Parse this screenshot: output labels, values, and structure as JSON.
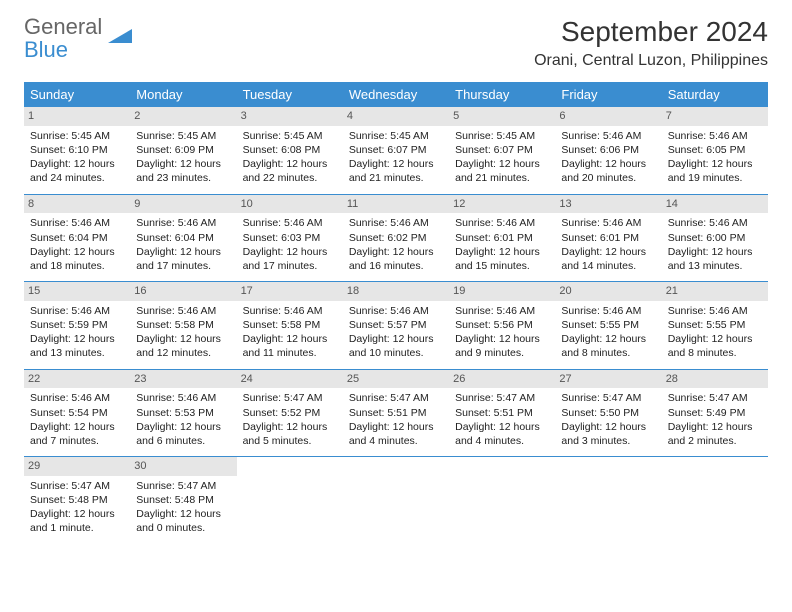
{
  "logo": {
    "gray": "General",
    "blue": "Blue"
  },
  "title": "September 2024",
  "location": "Orani, Central Luzon, Philippines",
  "colors": {
    "header_bg": "#3a8dd0",
    "header_text": "#ffffff",
    "daynum_bg": "#e6e6e6",
    "border": "#3a8dd0",
    "logo_gray": "#666666",
    "logo_blue": "#3a8dd0"
  },
  "fonts": {
    "title_size": 28,
    "location_size": 16,
    "dow_size": 13,
    "cell_size": 10.5
  },
  "dow": [
    "Sunday",
    "Monday",
    "Tuesday",
    "Wednesday",
    "Thursday",
    "Friday",
    "Saturday"
  ],
  "days": [
    {
      "n": "1",
      "sr": "Sunrise: 5:45 AM",
      "ss": "Sunset: 6:10 PM",
      "d1": "Daylight: 12 hours",
      "d2": "and 24 minutes."
    },
    {
      "n": "2",
      "sr": "Sunrise: 5:45 AM",
      "ss": "Sunset: 6:09 PM",
      "d1": "Daylight: 12 hours",
      "d2": "and 23 minutes."
    },
    {
      "n": "3",
      "sr": "Sunrise: 5:45 AM",
      "ss": "Sunset: 6:08 PM",
      "d1": "Daylight: 12 hours",
      "d2": "and 22 minutes."
    },
    {
      "n": "4",
      "sr": "Sunrise: 5:45 AM",
      "ss": "Sunset: 6:07 PM",
      "d1": "Daylight: 12 hours",
      "d2": "and 21 minutes."
    },
    {
      "n": "5",
      "sr": "Sunrise: 5:45 AM",
      "ss": "Sunset: 6:07 PM",
      "d1": "Daylight: 12 hours",
      "d2": "and 21 minutes."
    },
    {
      "n": "6",
      "sr": "Sunrise: 5:46 AM",
      "ss": "Sunset: 6:06 PM",
      "d1": "Daylight: 12 hours",
      "d2": "and 20 minutes."
    },
    {
      "n": "7",
      "sr": "Sunrise: 5:46 AM",
      "ss": "Sunset: 6:05 PM",
      "d1": "Daylight: 12 hours",
      "d2": "and 19 minutes."
    },
    {
      "n": "8",
      "sr": "Sunrise: 5:46 AM",
      "ss": "Sunset: 6:04 PM",
      "d1": "Daylight: 12 hours",
      "d2": "and 18 minutes."
    },
    {
      "n": "9",
      "sr": "Sunrise: 5:46 AM",
      "ss": "Sunset: 6:04 PM",
      "d1": "Daylight: 12 hours",
      "d2": "and 17 minutes."
    },
    {
      "n": "10",
      "sr": "Sunrise: 5:46 AM",
      "ss": "Sunset: 6:03 PM",
      "d1": "Daylight: 12 hours",
      "d2": "and 17 minutes."
    },
    {
      "n": "11",
      "sr": "Sunrise: 5:46 AM",
      "ss": "Sunset: 6:02 PM",
      "d1": "Daylight: 12 hours",
      "d2": "and 16 minutes."
    },
    {
      "n": "12",
      "sr": "Sunrise: 5:46 AM",
      "ss": "Sunset: 6:01 PM",
      "d1": "Daylight: 12 hours",
      "d2": "and 15 minutes."
    },
    {
      "n": "13",
      "sr": "Sunrise: 5:46 AM",
      "ss": "Sunset: 6:01 PM",
      "d1": "Daylight: 12 hours",
      "d2": "and 14 minutes."
    },
    {
      "n": "14",
      "sr": "Sunrise: 5:46 AM",
      "ss": "Sunset: 6:00 PM",
      "d1": "Daylight: 12 hours",
      "d2": "and 13 minutes."
    },
    {
      "n": "15",
      "sr": "Sunrise: 5:46 AM",
      "ss": "Sunset: 5:59 PM",
      "d1": "Daylight: 12 hours",
      "d2": "and 13 minutes."
    },
    {
      "n": "16",
      "sr": "Sunrise: 5:46 AM",
      "ss": "Sunset: 5:58 PM",
      "d1": "Daylight: 12 hours",
      "d2": "and 12 minutes."
    },
    {
      "n": "17",
      "sr": "Sunrise: 5:46 AM",
      "ss": "Sunset: 5:58 PM",
      "d1": "Daylight: 12 hours",
      "d2": "and 11 minutes."
    },
    {
      "n": "18",
      "sr": "Sunrise: 5:46 AM",
      "ss": "Sunset: 5:57 PM",
      "d1": "Daylight: 12 hours",
      "d2": "and 10 minutes."
    },
    {
      "n": "19",
      "sr": "Sunrise: 5:46 AM",
      "ss": "Sunset: 5:56 PM",
      "d1": "Daylight: 12 hours",
      "d2": "and 9 minutes."
    },
    {
      "n": "20",
      "sr": "Sunrise: 5:46 AM",
      "ss": "Sunset: 5:55 PM",
      "d1": "Daylight: 12 hours",
      "d2": "and 8 minutes."
    },
    {
      "n": "21",
      "sr": "Sunrise: 5:46 AM",
      "ss": "Sunset: 5:55 PM",
      "d1": "Daylight: 12 hours",
      "d2": "and 8 minutes."
    },
    {
      "n": "22",
      "sr": "Sunrise: 5:46 AM",
      "ss": "Sunset: 5:54 PM",
      "d1": "Daylight: 12 hours",
      "d2": "and 7 minutes."
    },
    {
      "n": "23",
      "sr": "Sunrise: 5:46 AM",
      "ss": "Sunset: 5:53 PM",
      "d1": "Daylight: 12 hours",
      "d2": "and 6 minutes."
    },
    {
      "n": "24",
      "sr": "Sunrise: 5:47 AM",
      "ss": "Sunset: 5:52 PM",
      "d1": "Daylight: 12 hours",
      "d2": "and 5 minutes."
    },
    {
      "n": "25",
      "sr": "Sunrise: 5:47 AM",
      "ss": "Sunset: 5:51 PM",
      "d1": "Daylight: 12 hours",
      "d2": "and 4 minutes."
    },
    {
      "n": "26",
      "sr": "Sunrise: 5:47 AM",
      "ss": "Sunset: 5:51 PM",
      "d1": "Daylight: 12 hours",
      "d2": "and 4 minutes."
    },
    {
      "n": "27",
      "sr": "Sunrise: 5:47 AM",
      "ss": "Sunset: 5:50 PM",
      "d1": "Daylight: 12 hours",
      "d2": "and 3 minutes."
    },
    {
      "n": "28",
      "sr": "Sunrise: 5:47 AM",
      "ss": "Sunset: 5:49 PM",
      "d1": "Daylight: 12 hours",
      "d2": "and 2 minutes."
    },
    {
      "n": "29",
      "sr": "Sunrise: 5:47 AM",
      "ss": "Sunset: 5:48 PM",
      "d1": "Daylight: 12 hours",
      "d2": "and 1 minute."
    },
    {
      "n": "30",
      "sr": "Sunrise: 5:47 AM",
      "ss": "Sunset: 5:48 PM",
      "d1": "Daylight: 12 hours",
      "d2": "and 0 minutes."
    }
  ]
}
